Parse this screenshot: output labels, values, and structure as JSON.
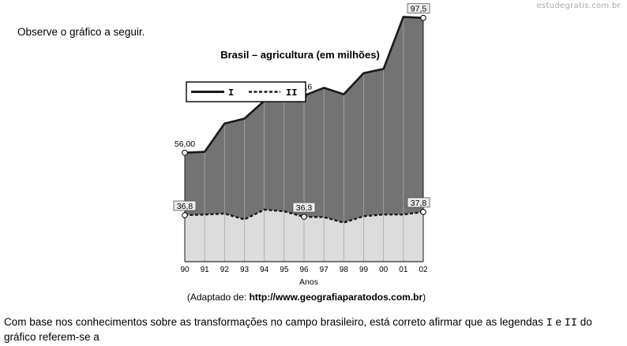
{
  "watermark": "estudegratis.com.br",
  "intro": "Observe o gráfico a seguir.",
  "chart_data": {
    "type": "area",
    "title": "Brasil – agricultura (em milhões)",
    "xlabel": "Anos",
    "ylabel": "",
    "x": [
      "90",
      "91",
      "92",
      "93",
      "94",
      "95",
      "96",
      "97",
      "98",
      "99",
      "00",
      "01",
      "02"
    ],
    "series": [
      {
        "name": "I",
        "line_style": "solid",
        "fill": "#737373",
        "values": [
          56.0,
          56.3,
          65.0,
          66.5,
          72.0,
          75.5,
          73.6,
          76.0,
          74.0,
          80.5,
          81.8,
          97.8,
          97.5
        ]
      },
      {
        "name": "II",
        "line_style": "dashed",
        "fill": "#dcdcdc",
        "values": [
          36.8,
          37.0,
          37.3,
          35.5,
          38.5,
          38.0,
          36.3,
          36.2,
          34.5,
          36.5,
          37.0,
          37.0,
          37.8
        ]
      }
    ],
    "labels": [
      {
        "series": 0,
        "index": 0,
        "text": "56,00"
      },
      {
        "series": 0,
        "index": 6,
        "text": "73,6"
      },
      {
        "series": 0,
        "index": 12,
        "text": "97,5"
      },
      {
        "series": 1,
        "index": 0,
        "text": "36,8"
      },
      {
        "series": 1,
        "index": 6,
        "text": "36,3"
      },
      {
        "series": 1,
        "index": 12,
        "text": "37,8"
      }
    ],
    "ylim": [
      22.5,
      103
    ],
    "grid": "vertical",
    "legend_position": "top-left"
  },
  "source": {
    "prefix": "(Adaptado de: ",
    "url": "http://www.geografiaparatodos.com.br",
    "suffix": ")"
  },
  "question": {
    "p1": "Com base nos conhecimentos sobre as transformações no campo brasileiro, está correto afirmar que as legendas ",
    "c1": "I",
    "p2": " e ",
    "c2": "II",
    "p3": " do gráfico referem-se a"
  }
}
